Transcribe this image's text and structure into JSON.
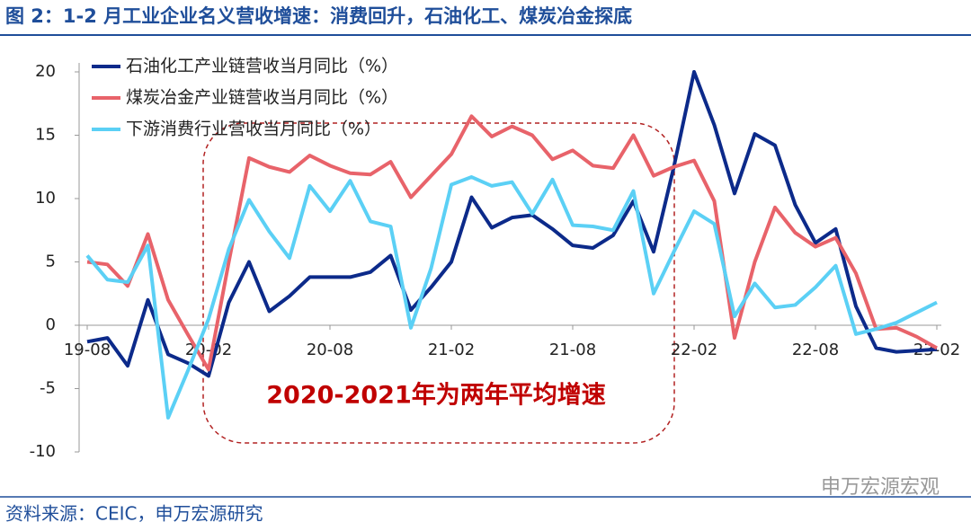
{
  "chart_data": {
    "type": "line",
    "title": "图 2：1-2 月工业企业名义营收增速：消费回升，石油化工、煤炭冶金探底",
    "source": "资料来源：CEIC，申万宏源研究",
    "watermark": "申万宏源宏观",
    "annotation": "2020-2021年为两年平均增速",
    "categories": [
      "19-08",
      null,
      null,
      null,
      null,
      null,
      "20-02",
      null,
      null,
      null,
      null,
      null,
      "20-08",
      null,
      null,
      null,
      null,
      null,
      "21-02",
      null,
      null,
      null,
      null,
      null,
      "21-08",
      null,
      null,
      null,
      null,
      null,
      "22-02",
      null,
      null,
      null,
      null,
      null,
      "22-08",
      null,
      null,
      null,
      null,
      null,
      "23-02"
    ],
    "series": [
      {
        "name": "石油化工产业链营收当月同比（%）",
        "color": "#0c2a8a",
        "values": [
          -1.3,
          -1.0,
          -3.2,
          2.0,
          -2.3,
          -3.0,
          -4.0,
          1.8,
          5.0,
          1.1,
          2.3,
          3.8,
          3.8,
          3.8,
          4.2,
          5.5,
          1.2,
          3.0,
          5.0,
          10.1,
          7.7,
          8.5,
          8.7,
          7.6,
          6.3,
          6.1,
          7.1,
          9.8,
          5.8,
          12.5,
          20.0,
          15.8,
          10.4,
          15.1,
          14.2,
          9.5,
          6.5,
          7.6,
          1.5,
          -1.8,
          -2.1,
          -2.0,
          -1.9
        ]
      },
      {
        "name": "煤炭冶金产业链营收当月同比（%）",
        "color": "#e8636a",
        "values": [
          5.0,
          4.8,
          3.1,
          7.2,
          2.0,
          -0.8,
          -3.5,
          5.0,
          13.2,
          12.5,
          12.1,
          13.4,
          12.6,
          12.0,
          11.9,
          12.9,
          10.1,
          11.8,
          13.5,
          16.5,
          14.9,
          15.7,
          15.0,
          13.1,
          13.8,
          12.6,
          12.4,
          15.0,
          11.8,
          12.5,
          13.0,
          9.8,
          -1.0,
          5.0,
          9.3,
          7.3,
          6.2,
          6.9,
          4.1,
          -0.3,
          -0.2,
          -0.9,
          -1.8
        ]
      },
      {
        "name": "下游消费行业营收当月同比（%）",
        "color": "#5bd0f5",
        "values": [
          5.5,
          3.6,
          3.4,
          6.3,
          -7.3,
          -3.5,
          0.5,
          6.0,
          9.9,
          7.4,
          5.3,
          11.0,
          9.0,
          11.4,
          8.2,
          7.8,
          -0.2,
          4.5,
          11.1,
          11.7,
          11.0,
          11.3,
          8.8,
          11.5,
          7.9,
          7.8,
          7.5,
          10.6,
          2.5,
          5.8,
          9.0,
          8.0,
          0.7,
          3.3,
          1.4,
          1.6,
          3.0,
          4.7,
          -0.7,
          -0.3,
          0.2,
          1.0,
          1.8
        ]
      }
    ],
    "ylim": [
      -10,
      20
    ],
    "yticks": [
      -10,
      -5,
      0,
      5,
      10,
      15,
      20
    ]
  }
}
